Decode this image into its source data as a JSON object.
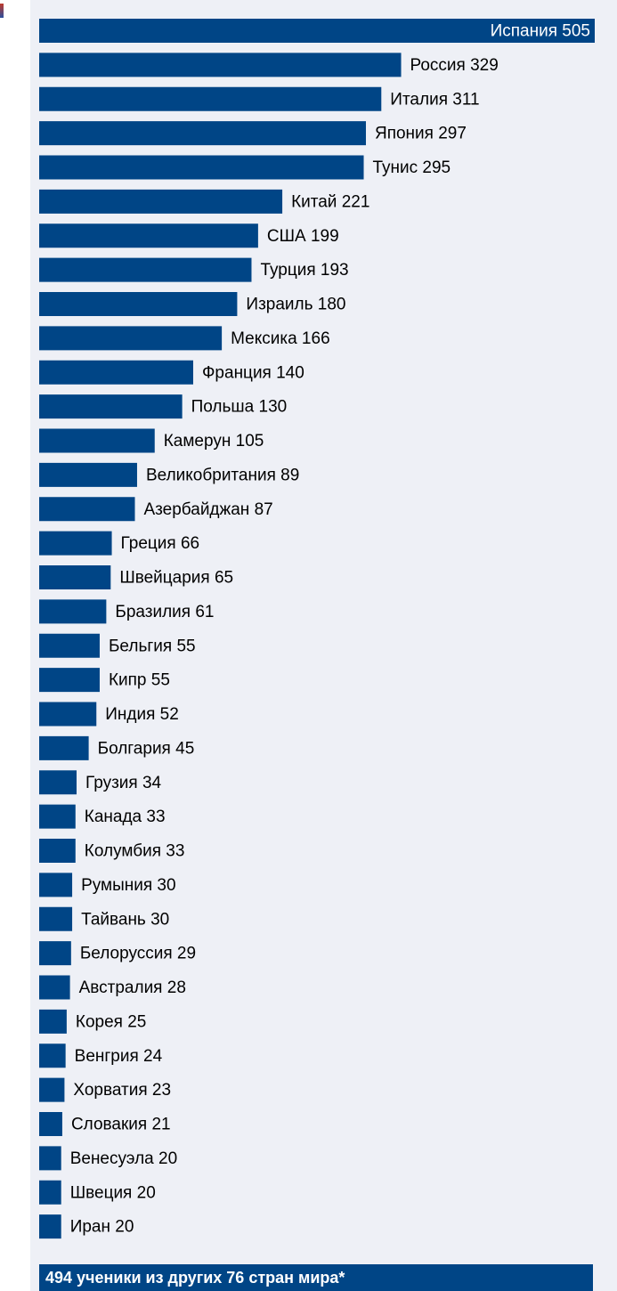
{
  "chart_data": {
    "type": "bar",
    "orientation": "horizontal",
    "bar_color": "#004586",
    "label_color": "#000000",
    "inside_label_color": "#ffffff",
    "categories": [
      "Испания",
      "Россия",
      "Италия",
      "Япония",
      "Тунис",
      "Китай",
      "США",
      "Турция",
      "Израиль",
      "Мексика",
      "Франция",
      "Польша",
      "Камерун",
      "Великобритания",
      "Азербайджан",
      "Греция",
      "Швейцария",
      "Бразилия",
      "Бельгия",
      "Кипр",
      "Индия",
      "Болгария",
      "Грузия",
      "Канада",
      "Колумбия",
      "Румыния",
      "Тайвань",
      "Белоруссия",
      "Австралия",
      "Корея",
      "Венгрия",
      "Хорватия",
      "Словакия",
      "Венесуэла",
      "Швеция",
      "Иран"
    ],
    "values": [
      505,
      329,
      311,
      297,
      295,
      221,
      199,
      193,
      180,
      166,
      140,
      130,
      105,
      89,
      87,
      66,
      65,
      61,
      55,
      55,
      52,
      45,
      34,
      33,
      33,
      30,
      30,
      29,
      28,
      25,
      24,
      23,
      21,
      20,
      20,
      20
    ],
    "labels": [
      "Испания 505",
      "Россия 329",
      "Италия 311",
      "Япония 297",
      "Тунис 295",
      "Китай 221",
      "США 199",
      "Турция 193",
      "Израиль 180",
      "Мексика 166",
      "Франция 140",
      "Польша 130",
      "Камерун 105",
      "Великобритания 89",
      "Азербайджан 87",
      "Греция 66",
      "Швейцария 65",
      "Бразилия 61",
      "Бельгия 55",
      "Кипр 55",
      "Индия 52",
      "Болгария 45",
      "Грузия 34",
      "Канада 33",
      "Колумбия 33",
      "Румыния 30",
      "Тайвань 30",
      "Белоруссия 29",
      "Австралия 28",
      "Корея 25",
      "Венгрия 24",
      "Хорватия 23",
      "Словакия 21",
      "Венесуэла 20",
      "Швеция 20",
      "Иран 20"
    ],
    "footer": "494 ученики из других 76 стран мира*"
  }
}
